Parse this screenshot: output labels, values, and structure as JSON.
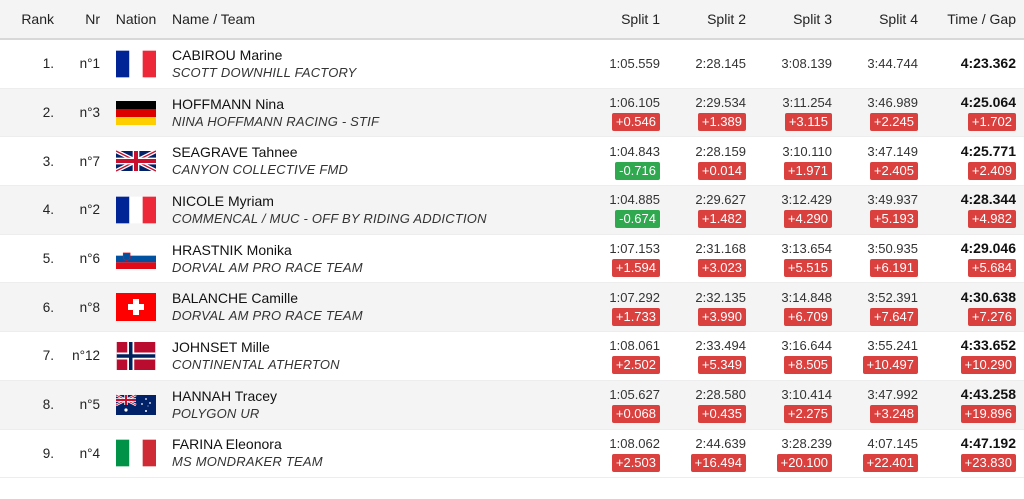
{
  "header": {
    "rank": "Rank",
    "nr": "Nr",
    "nation": "Nation",
    "name_team": "Name / Team",
    "split1": "Split 1",
    "split2": "Split 2",
    "split3": "Split 3",
    "split4": "Split 4",
    "total": "Time / Gap"
  },
  "rows": [
    {
      "rank": "1.",
      "nr": "n°1",
      "nation": "france-flag-icon",
      "name": "CABIROU Marine",
      "team": "SCOTT DOWNHILL FACTORY",
      "s1": "1:05.559",
      "g1": "",
      "s2": "2:28.145",
      "g2": "",
      "s3": "3:08.139",
      "g3": "",
      "s4": "3:44.744",
      "g4": "",
      "t": "4:23.362",
      "gt": ""
    },
    {
      "rank": "2.",
      "nr": "n°3",
      "nation": "germany-flag-icon",
      "name": "HOFFMANN Nina",
      "team": "NINA HOFFMANN RACING - STIF",
      "s1": "1:06.105",
      "g1": "+0.546",
      "s2": "2:29.534",
      "g2": "+1.389",
      "s3": "3:11.254",
      "g3": "+3.115",
      "s4": "3:46.989",
      "g4": "+2.245",
      "t": "4:25.064",
      "gt": "+1.702"
    },
    {
      "rank": "3.",
      "nr": "n°7",
      "nation": "uk-flag-icon",
      "name": "SEAGRAVE Tahnee",
      "team": "CANYON COLLECTIVE FMD",
      "s1": "1:04.843",
      "g1": "-0.716",
      "s2": "2:28.159",
      "g2": "+0.014",
      "s3": "3:10.110",
      "g3": "+1.971",
      "s4": "3:47.149",
      "g4": "+2.405",
      "t": "4:25.771",
      "gt": "+2.409"
    },
    {
      "rank": "4.",
      "nr": "n°2",
      "nation": "france-flag-icon",
      "name": "NICOLE Myriam",
      "team": "COMMENCAL / MUC - OFF BY RIDING ADDICTION",
      "s1": "1:04.885",
      "g1": "-0.674",
      "s2": "2:29.627",
      "g2": "+1.482",
      "s3": "3:12.429",
      "g3": "+4.290",
      "s4": "3:49.937",
      "g4": "+5.193",
      "t": "4:28.344",
      "gt": "+4.982"
    },
    {
      "rank": "5.",
      "nr": "n°6",
      "nation": "slovenia-flag-icon",
      "name": "HRASTNIK Monika",
      "team": "DORVAL AM PRO RACE TEAM",
      "s1": "1:07.153",
      "g1": "+1.594",
      "s2": "2:31.168",
      "g2": "+3.023",
      "s3": "3:13.654",
      "g3": "+5.515",
      "s4": "3:50.935",
      "g4": "+6.191",
      "t": "4:29.046",
      "gt": "+5.684"
    },
    {
      "rank": "6.",
      "nr": "n°8",
      "nation": "switzerland-flag-icon",
      "name": "BALANCHE Camille",
      "team": "DORVAL AM PRO RACE TEAM",
      "s1": "1:07.292",
      "g1": "+1.733",
      "s2": "2:32.135",
      "g2": "+3.990",
      "s3": "3:14.848",
      "g3": "+6.709",
      "s4": "3:52.391",
      "g4": "+7.647",
      "t": "4:30.638",
      "gt": "+7.276"
    },
    {
      "rank": "7.",
      "nr": "n°12",
      "nation": "norway-flag-icon",
      "name": "JOHNSET Mille",
      "team": "CONTINENTAL ATHERTON",
      "s1": "1:08.061",
      "g1": "+2.502",
      "s2": "2:33.494",
      "g2": "+5.349",
      "s3": "3:16.644",
      "g3": "+8.505",
      "s4": "3:55.241",
      "g4": "+10.497",
      "t": "4:33.652",
      "gt": "+10.290"
    },
    {
      "rank": "8.",
      "nr": "n°5",
      "nation": "australia-flag-icon",
      "name": "HANNAH Tracey",
      "team": "POLYGON UR",
      "s1": "1:05.627",
      "g1": "+0.068",
      "s2": "2:28.580",
      "g2": "+0.435",
      "s3": "3:10.414",
      "g3": "+2.275",
      "s4": "3:47.992",
      "g4": "+3.248",
      "t": "4:43.258",
      "gt": "+19.896"
    },
    {
      "rank": "9.",
      "nr": "n°4",
      "nation": "italy-flag-icon",
      "name": "FARINA Eleonora",
      "team": "MS MONDRAKER TEAM",
      "s1": "1:08.062",
      "g1": "+2.503",
      "s2": "2:44.639",
      "g2": "+16.494",
      "s3": "3:28.239",
      "g3": "+20.100",
      "s4": "4:07.145",
      "g4": "+22.401",
      "t": "4:47.192",
      "gt": "+23.830"
    }
  ]
}
